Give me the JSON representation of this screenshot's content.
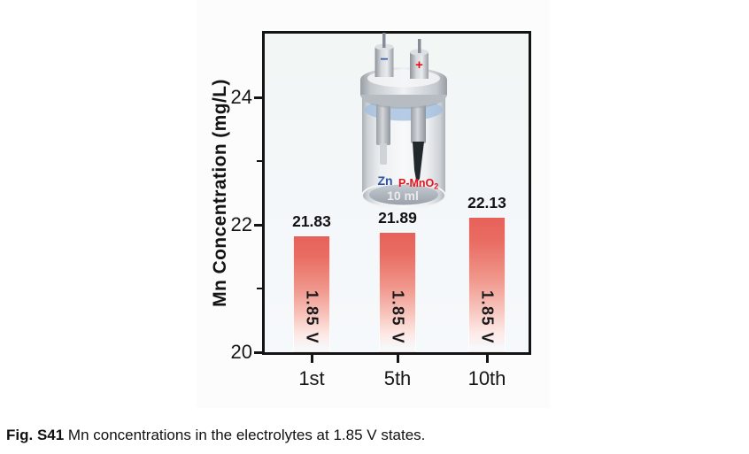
{
  "figure": {
    "caption_prefix": "Fig. S41",
    "caption_text": " Mn concentrations in the electrolytes at 1.85 V states."
  },
  "chart_data": {
    "type": "bar",
    "title": "",
    "categories": [
      "1st",
      "5th",
      "10th"
    ],
    "values": [
      21.83,
      21.89,
      22.13
    ],
    "value_labels": [
      "21.83",
      "21.89",
      "22.13"
    ],
    "bar_inner_labels": [
      "1.85 V",
      "1.85 V",
      "1.85 V"
    ],
    "xlabel": "",
    "ylabel": "Mn Concentration (mg/L)",
    "ylim": [
      20,
      25
    ],
    "yticks": [
      20,
      22,
      24
    ],
    "yticks_minor": [
      21,
      23
    ],
    "grid": false,
    "legend": "none",
    "bar_gradient_top": "#e6615a",
    "bar_gradient_bottom": "#ffffff",
    "plot_background": "#f4f7f8",
    "axis_color": "#141414"
  },
  "inset": {
    "negative_terminal": "−",
    "positive_terminal": "+",
    "anode_label": "Zn",
    "cathode_label": "P-MnO",
    "cathode_subscript": "2",
    "volume_label": "10 ml",
    "anode_label_color": "#2e55a5",
    "cathode_label_color": "#e8131b"
  }
}
